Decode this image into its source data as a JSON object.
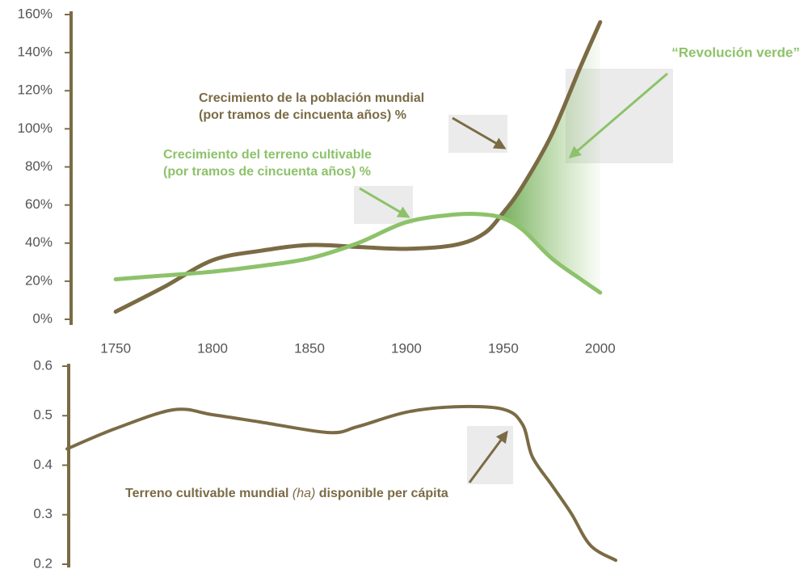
{
  "chart_data": [
    {
      "type": "line",
      "x": [
        1750,
        1775,
        1800,
        1825,
        1850,
        1875,
        1900,
        1925,
        1940,
        1950,
        1960,
        1975,
        1990,
        2000
      ],
      "series": [
        {
          "name": "Crecimiento de la población mundial (por tramos de cincuenta años) %",
          "color": "#7b6b45",
          "values": [
            4,
            17,
            31,
            36,
            39,
            38,
            37,
            39,
            45,
            56,
            70,
            97,
            133,
            156
          ]
        },
        {
          "name": "Crecimiento del terreno cultivable (por tramos de cincuenta años) %",
          "color": "#8dc26a",
          "values": [
            21,
            23,
            25,
            28,
            32,
            40,
            51,
            55,
            55,
            53,
            47,
            32,
            21,
            14
          ]
        }
      ],
      "annotations": [
        {
          "lines": [
            "Crecimiento de la población mundial",
            "(por tramos de cincuenta años) %"
          ],
          "color": "#7b6b45"
        },
        {
          "lines": [
            "Crecimiento del terreno cultivable",
            "(por tramos de cincuenta años) %"
          ],
          "color": "#8dc26a"
        },
        {
          "lines": [
            "“Revolución verde”"
          ],
          "color": "#8dc26a"
        }
      ],
      "xlim": [
        1727,
        2008
      ],
      "xticks": [
        1750,
        1800,
        1850,
        1900,
        1950,
        2000
      ],
      "ylim": [
        0,
        160
      ],
      "yticks": [
        {
          "value": 0,
          "label": "0%"
        },
        {
          "value": 20,
          "label": "20%"
        },
        {
          "value": 40,
          "label": "40%"
        },
        {
          "value": 60,
          "label": "60%"
        },
        {
          "value": 80,
          "label": "80%"
        },
        {
          "value": 100,
          "label": "100%"
        },
        {
          "value": 120,
          "label": "120%"
        },
        {
          "value": 140,
          "label": "140%"
        },
        {
          "value": 160,
          "label": "160%"
        }
      ]
    },
    {
      "type": "line",
      "x": [
        1725,
        1750,
        1780,
        1800,
        1825,
        1860,
        1875,
        1900,
        1925,
        1950,
        1960,
        1965,
        1975,
        1985,
        1995,
        2008
      ],
      "series": [
        {
          "name": "Terreno cultivable mundial (ha) disponible per cápita",
          "color": "#7b6b45",
          "values": [
            0.433,
            0.474,
            0.512,
            0.502,
            0.487,
            0.466,
            0.478,
            0.507,
            0.518,
            0.513,
            0.482,
            0.417,
            0.36,
            0.303,
            0.238,
            0.208
          ]
        }
      ],
      "annotation_parts": [
        "Terreno cultivable mundial ",
        "(ha)",
        " disponible per cápita"
      ],
      "xlim": [
        1725,
        2008
      ],
      "ylim": [
        0.2,
        0.6
      ],
      "yticks": [
        0.2,
        0.3,
        0.4,
        0.5,
        0.6
      ]
    }
  ]
}
